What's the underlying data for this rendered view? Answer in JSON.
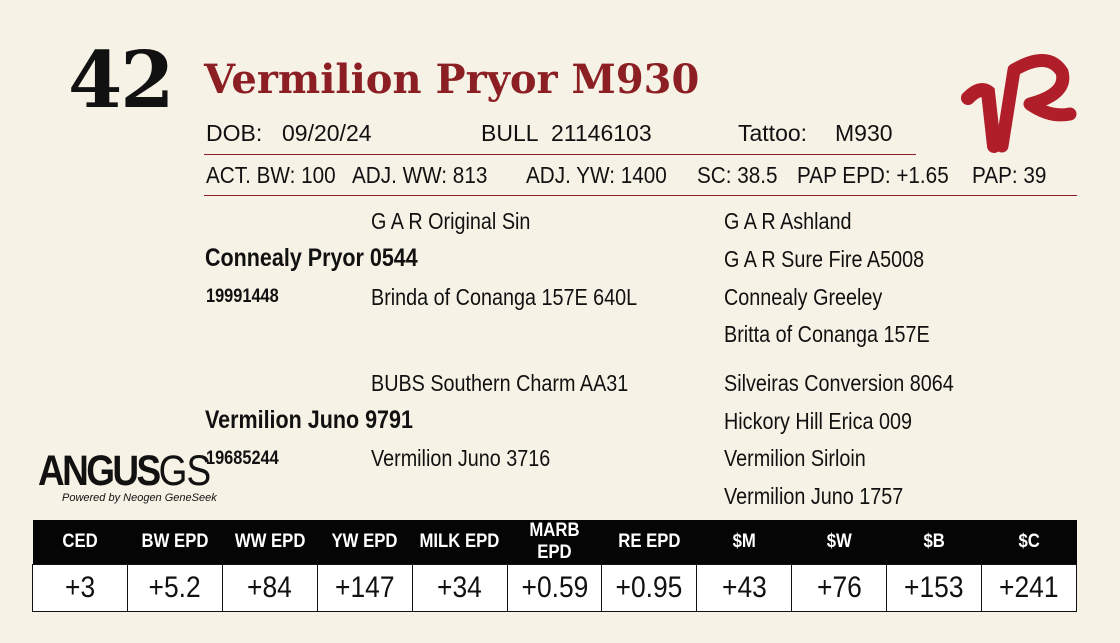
{
  "lot_number": "42",
  "animal_name": "Vermilion Pryor M930",
  "info_row1": {
    "dob_label": "DOB:",
    "dob_value": "09/20/24",
    "bull_label": "BULL",
    "bull_value": "21146103",
    "tattoo_label": "Tattoo:",
    "tattoo_value": "M930"
  },
  "info_row2": {
    "act_bw": "ACT. BW: 100",
    "adj_ww": "ADJ. WW: 813",
    "adj_yw": "ADJ. YW: 1400",
    "sc": "SC: 38.5",
    "pap_epd": "PAP EPD: +1.65",
    "pap": "PAP: 39"
  },
  "pedigree": {
    "sire": {
      "name": "Connealy Pryor 0544",
      "reg": "19991448",
      "sire": "G A R Original Sin",
      "dam": "Brinda of Conanga 157E 640L",
      "grand": [
        "G A R Ashland",
        "G A R Sure Fire A5008",
        "Connealy Greeley",
        "Britta of Conanga 157E"
      ]
    },
    "dam": {
      "name": "Vermilion Juno 9791",
      "reg": "19685244",
      "sire": "BUBS Southern Charm AA31",
      "dam": "Vermilion Juno 3716",
      "grand": [
        "Silveiras Conversion 8064",
        "Hickory Hill Erica 009",
        "Vermilion Sirloin",
        "Vermilion Juno 1757"
      ]
    }
  },
  "logo": {
    "brand_main": "ANGUS",
    "brand_suffix": "GS",
    "tagline": "Powered by Neogen GeneSeek",
    "ranch_mark": "VR",
    "ranch_color": "#b01e2a"
  },
  "epd_table": {
    "headers": [
      "CED",
      "BW EPD",
      "WW EPD",
      "YW EPD",
      "MILK EPD",
      "MARB EPD",
      "RE EPD",
      "$M",
      "$W",
      "$B",
      "$C"
    ],
    "values": [
      "+3",
      "+5.2",
      "+84",
      "+147",
      "+34",
      "+0.59",
      "+0.95",
      "+43",
      "+76",
      "+153",
      "+241"
    ]
  },
  "colors": {
    "title": "#8b1f24",
    "background": "#f7f2e6",
    "table_header": "#050505"
  }
}
